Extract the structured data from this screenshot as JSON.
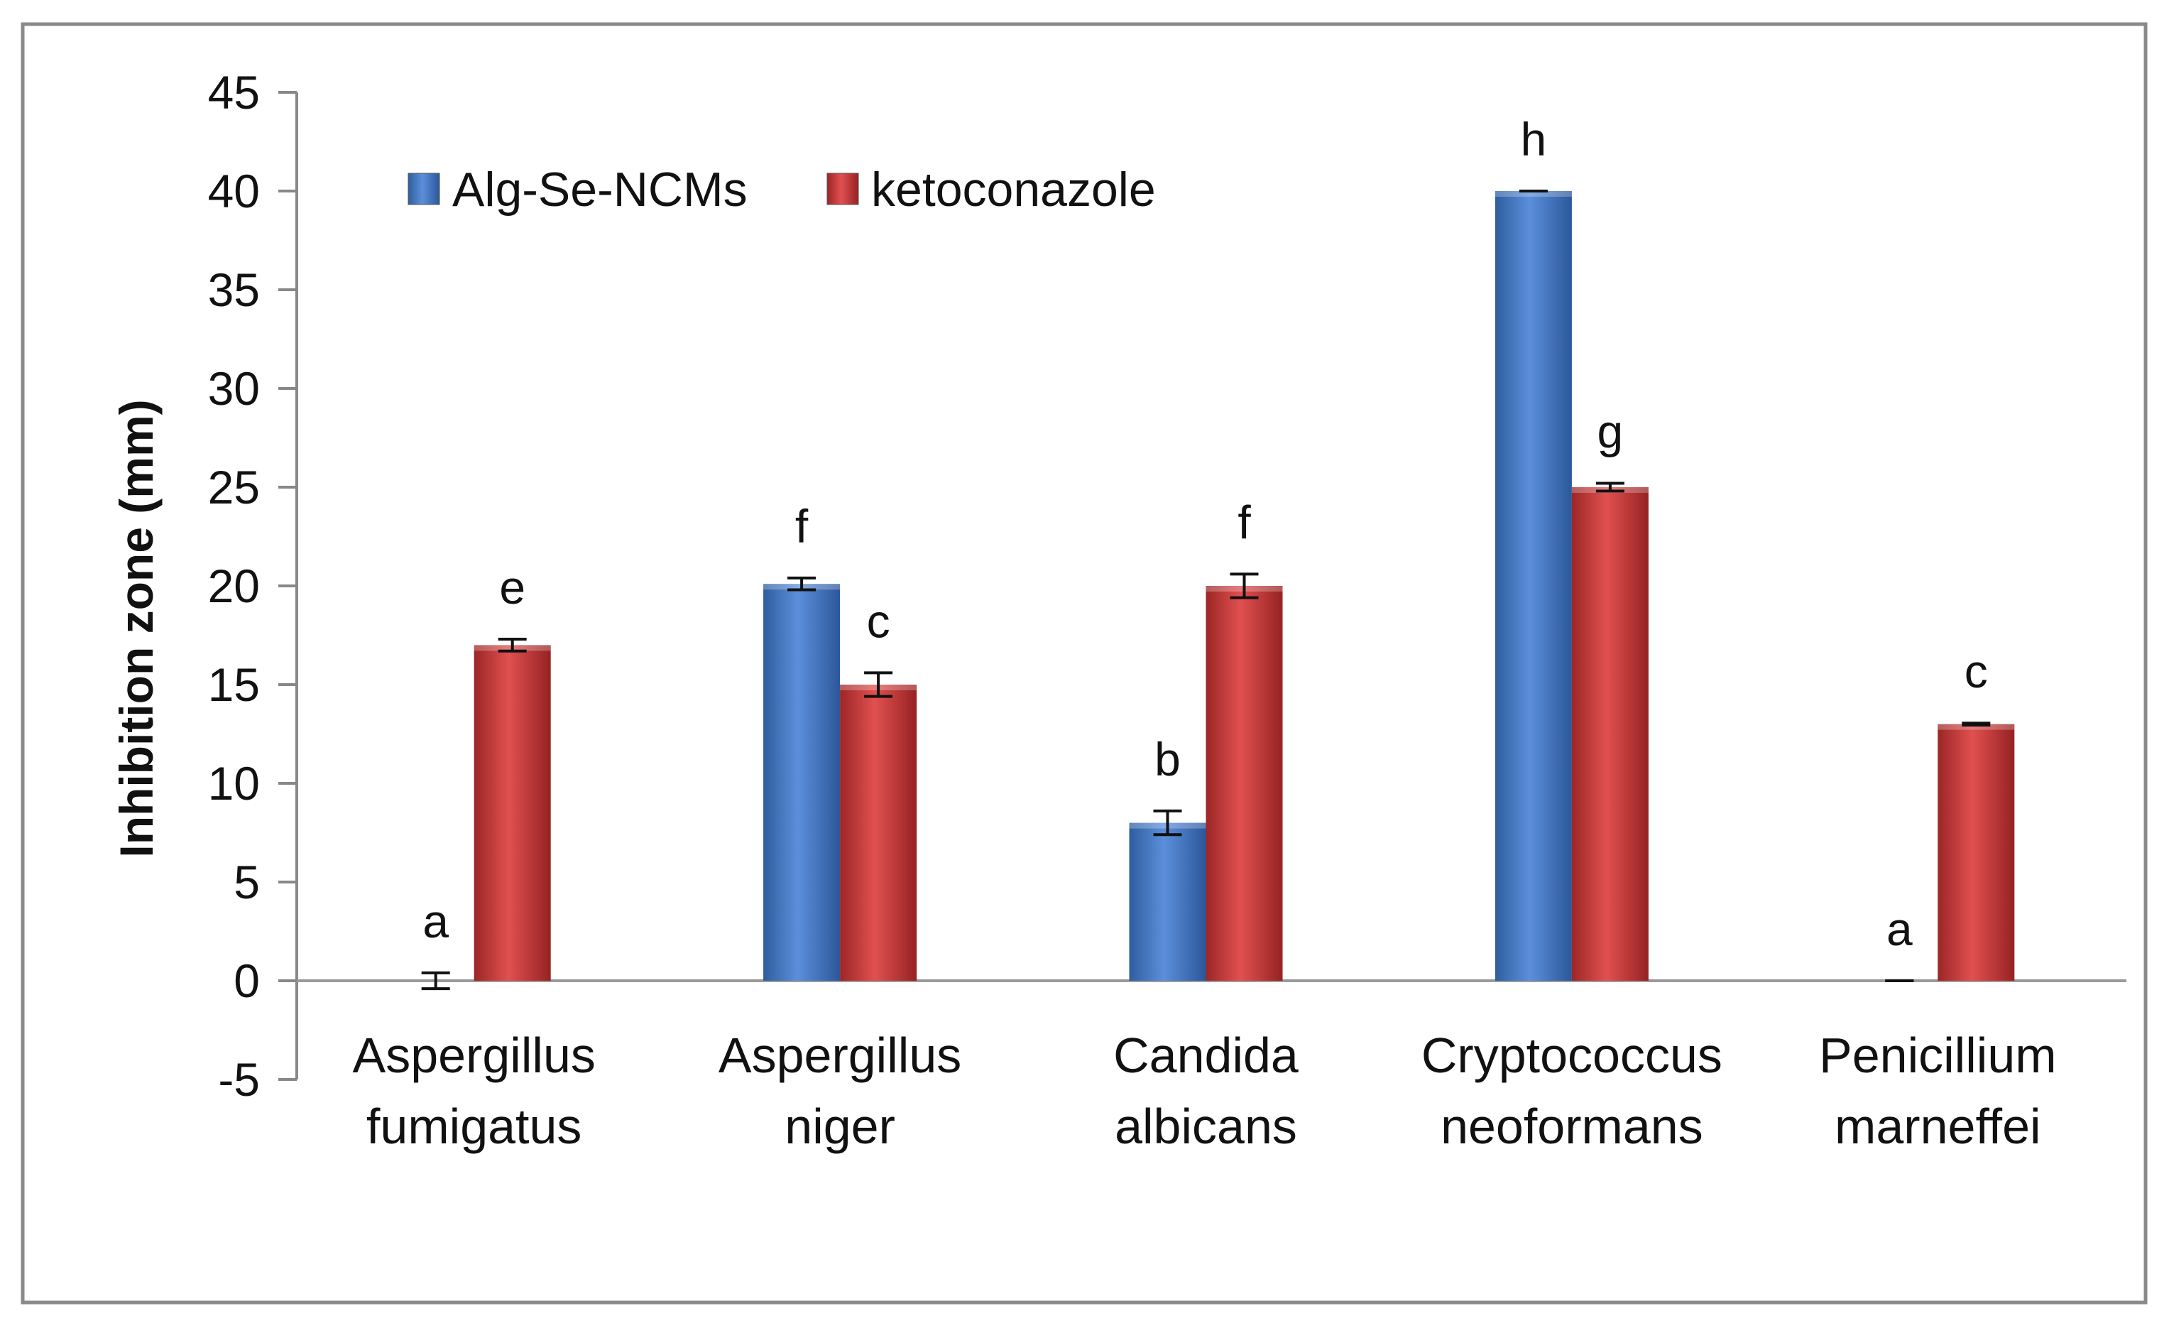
{
  "chart_data": {
    "type": "bar",
    "title": "",
    "xlabel": "",
    "ylabel": "Inhibition zone (mm)",
    "ylim": [
      -5,
      45
    ],
    "ytick_step": 5,
    "yticks": [
      "-5",
      "0",
      "5",
      "10",
      "15",
      "20",
      "25",
      "30",
      "35",
      "40",
      "45"
    ],
    "legend_position": "top-left",
    "categories": [
      [
        "Aspergillus",
        "fumigatus"
      ],
      [
        "Aspergillus",
        "niger"
      ],
      [
        "Candida",
        "albicans"
      ],
      [
        "Cryptococcus",
        "neoformans"
      ],
      [
        "Penicillium",
        "marneffei"
      ]
    ],
    "series": [
      {
        "name": "Alg-Se-NCMs",
        "color": "#4a7ccc",
        "values": [
          0,
          20.1,
          8,
          40,
          0
        ],
        "errors": [
          0.4,
          0.3,
          0.6,
          0,
          0
        ],
        "letters": [
          "a",
          "f",
          "b",
          "h",
          "a"
        ]
      },
      {
        "name": "ketoconazole",
        "color": "#cc3b3b",
        "values": [
          17,
          15,
          20,
          25,
          13
        ],
        "errors": [
          0.3,
          0.6,
          0.6,
          0.2,
          0.05
        ],
        "letters": [
          "e",
          "c",
          "f",
          "g",
          "c"
        ]
      }
    ]
  }
}
